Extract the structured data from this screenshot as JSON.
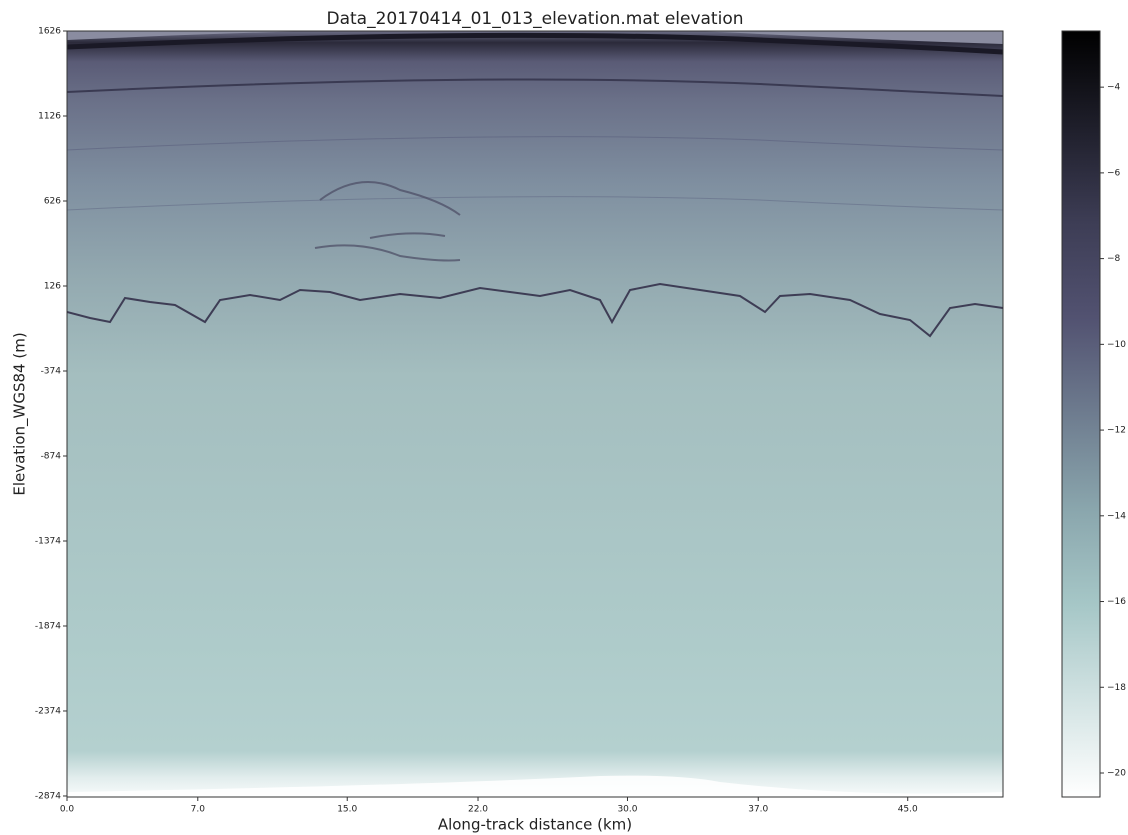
{
  "chart_data": {
    "type": "heatmap",
    "title": "Data_20170414_01_013_elevation.mat elevation",
    "x_label": "Along-track distance (km)",
    "y_label": "Elevation_WGS84 (m)",
    "xlim": [
      0,
      50.1
    ],
    "xticks": [
      {
        "value": 0,
        "label": "0.0"
      },
      {
        "value": 7,
        "label": "7.0"
      },
      {
        "value": 15,
        "label": "15.0"
      },
      {
        "value": 22,
        "label": "22.0"
      },
      {
        "value": 30,
        "label": "30.0"
      },
      {
        "value": 37,
        "label": "37.0"
      },
      {
        "value": 45,
        "label": "45.0"
      }
    ],
    "ylim": [
      -2880,
      1626
    ],
    "yticks": [
      1626,
      1126,
      626,
      126,
      -374,
      -874,
      -1374,
      -1874,
      -2374,
      -2874
    ],
    "colormap": "bone_r",
    "clim": [
      -20.56,
      -2.69
    ],
    "cticks": [
      {
        "value": -4,
        "label": "−4"
      },
      {
        "value": -6,
        "label": "−6"
      },
      {
        "value": -8,
        "label": "−8"
      },
      {
        "value": -10,
        "label": "−10"
      },
      {
        "value": -12,
        "label": "−12"
      },
      {
        "value": -14,
        "label": "−14"
      },
      {
        "value": -16,
        "label": "−16"
      },
      {
        "value": -18,
        "label": "−18"
      },
      {
        "value": -20,
        "label": "−20"
      }
    ]
  }
}
